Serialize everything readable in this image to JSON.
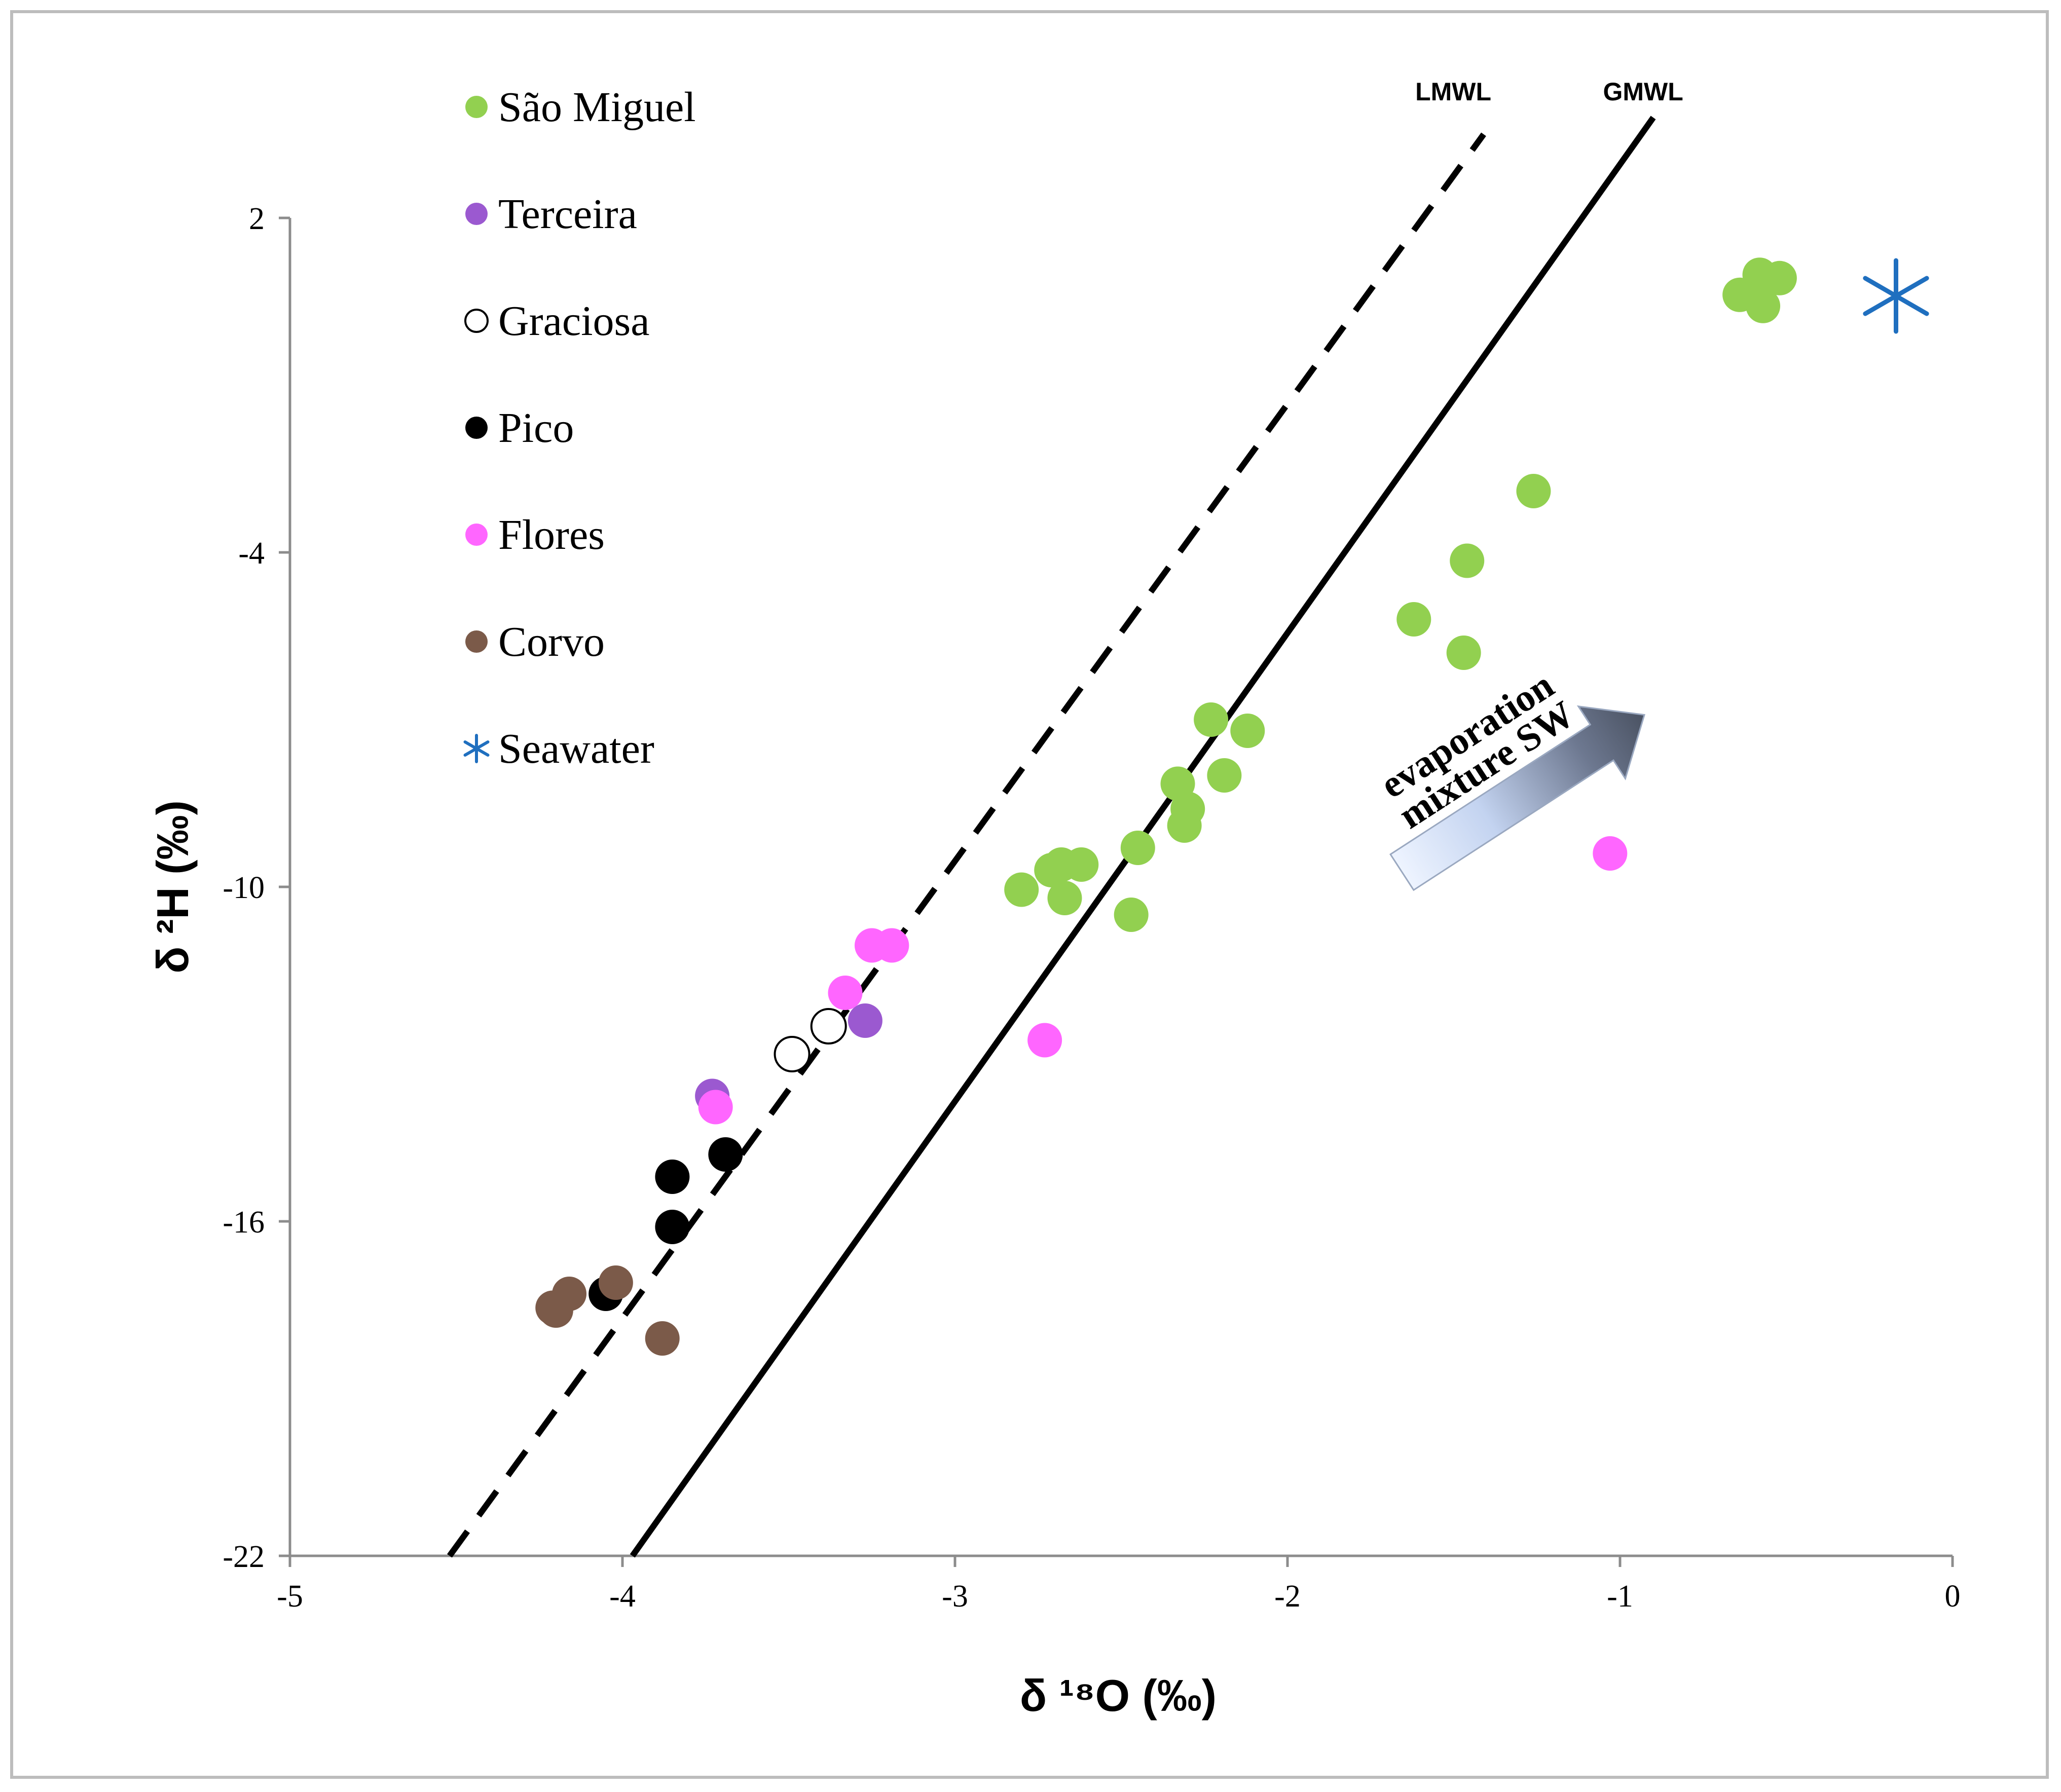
{
  "chart_data": {
    "type": "scatter",
    "title": "",
    "xlabel": "δ ¹⁸O (‰)",
    "ylabel": "δ ²H (‰)",
    "xlim": [
      -5,
      0
    ],
    "ylim": [
      -22,
      2
    ],
    "xticks": [
      -5,
      -4,
      -3,
      -2,
      -1,
      0
    ],
    "yticks": [
      -22,
      -16,
      -10,
      -4,
      2
    ],
    "xtick_labels": [
      "-5",
      "-4",
      "-3",
      "-2",
      "-1",
      "0"
    ],
    "ytick_labels": [
      "-22",
      "-16",
      "-10",
      "-4",
      "2"
    ],
    "grid": false,
    "legend_position": "top-left",
    "series": [
      {
        "name": "São Miguel",
        "color": "#92d050",
        "marker": "filled-circle",
        "points": [
          [
            -0.58,
            0.98
          ],
          [
            -0.52,
            0.92
          ],
          [
            -0.64,
            0.62
          ],
          [
            -0.57,
            0.42
          ],
          [
            -1.26,
            -2.9
          ],
          [
            -1.46,
            -4.15
          ],
          [
            -1.62,
            -5.2
          ],
          [
            -1.47,
            -5.8
          ],
          [
            -2.23,
            -7.0
          ],
          [
            -2.12,
            -7.2
          ],
          [
            -2.19,
            -8.0
          ],
          [
            -2.33,
            -8.15
          ],
          [
            -2.3,
            -8.6
          ],
          [
            -2.31,
            -8.9
          ],
          [
            -2.45,
            -9.3
          ],
          [
            -2.62,
            -9.6
          ],
          [
            -2.68,
            -9.6
          ],
          [
            -2.71,
            -9.7
          ],
          [
            -2.67,
            -10.2
          ],
          [
            -2.8,
            -10.05
          ],
          [
            -2.47,
            -10.5
          ]
        ]
      },
      {
        "name": "Terceira",
        "color": "#9b59d0",
        "marker": "filled-circle",
        "points": [
          [
            -3.27,
            -12.4
          ],
          [
            -3.73,
            -13.75
          ]
        ]
      },
      {
        "name": "Graciosa",
        "color": "#ffffff",
        "marker": "open-circle",
        "points": [
          [
            -3.38,
            -12.5
          ],
          [
            -3.49,
            -13.0
          ]
        ]
      },
      {
        "name": "Pico",
        "color": "#000000",
        "marker": "filled-circle",
        "points": [
          [
            -3.69,
            -14.8
          ],
          [
            -3.85,
            -15.2
          ],
          [
            -3.85,
            -16.1
          ],
          [
            -4.05,
            -17.3
          ]
        ]
      },
      {
        "name": "Flores",
        "color": "#ff66ff",
        "marker": "filled-circle",
        "points": [
          [
            -3.19,
            -11.05
          ],
          [
            -3.25,
            -11.05
          ],
          [
            -3.33,
            -11.9
          ],
          [
            -3.72,
            -13.95
          ],
          [
            -2.73,
            -12.75
          ],
          [
            -1.03,
            -9.4
          ]
        ]
      },
      {
        "name": "Corvo",
        "color": "#7b5a49",
        "marker": "filled-circle",
        "points": [
          [
            -4.02,
            -17.1
          ],
          [
            -4.16,
            -17.3
          ],
          [
            -4.2,
            -17.6
          ],
          [
            -4.21,
            -17.55
          ],
          [
            -3.88,
            -18.1
          ]
        ]
      },
      {
        "name": "Seawater",
        "color": "#1f6fbf",
        "marker": "asterisk",
        "points": [
          [
            -0.17,
            0.6
          ]
        ]
      }
    ],
    "lines": [
      {
        "name": "LMWL",
        "style": "dashed",
        "color": "#000000",
        "x": [
          -4.52,
          -1.41
        ],
        "y": [
          -22,
          3.5
        ]
      },
      {
        "name": "GMWL",
        "style": "solid",
        "color": "#000000",
        "x": [
          -3.97,
          -0.9
        ],
        "y": [
          -22,
          3.8
        ]
      }
    ],
    "annotations": [
      {
        "text_lines": [
          "evaporation",
          "mixture SW"
        ],
        "kind": "arrow"
      }
    ]
  }
}
